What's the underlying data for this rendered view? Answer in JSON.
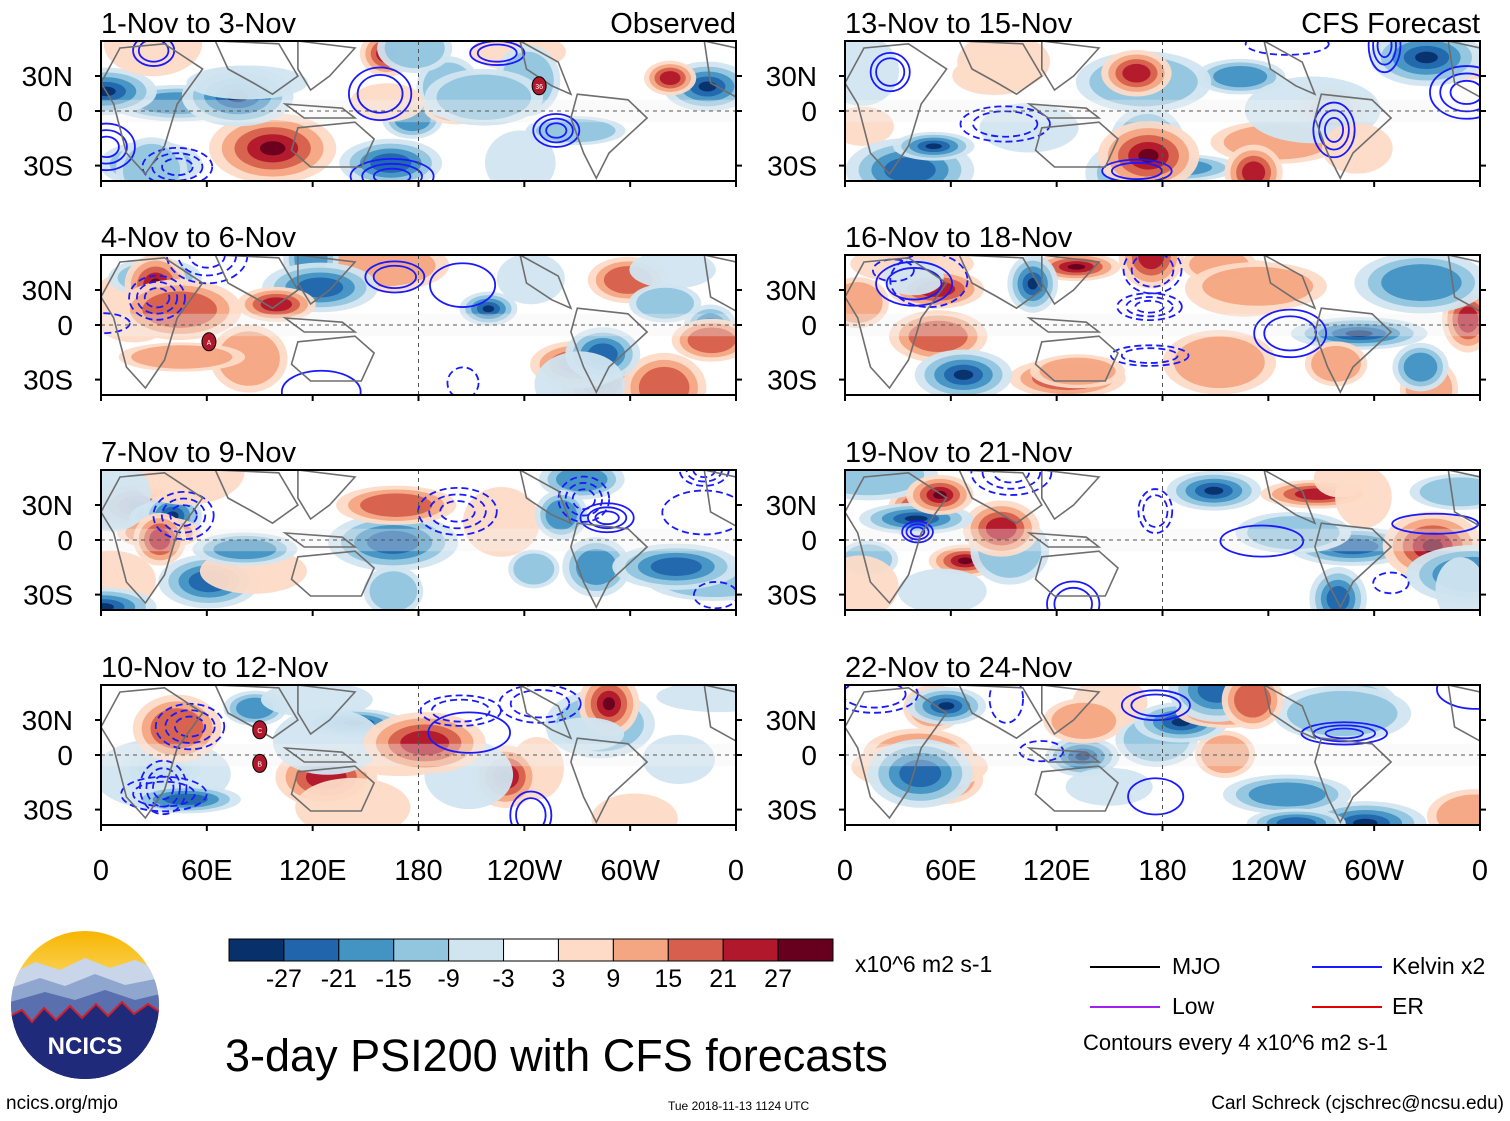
{
  "title": "3-day PSI200 with CFS forecasts",
  "footer": {
    "site": "ncics.org/mjo",
    "timestamp": "Tue 2018-11-13 1124 UTC",
    "author": "Carl Schreck (cjschrec@ncsu.edu)"
  },
  "logo_text": "NCICS",
  "colorbar": {
    "units": "x10^6 m2 s-1",
    "ticks": [
      "-27",
      "-21",
      "-15",
      "-9",
      "-3",
      "3",
      "9",
      "15",
      "21",
      "27"
    ],
    "colors": [
      "#08306b",
      "#2166ac",
      "#4393c3",
      "#92c5de",
      "#d1e5f0",
      "#ffffff",
      "#fddbc7",
      "#f4a582",
      "#d6604d",
      "#b2182b",
      "#67001f"
    ]
  },
  "legend": {
    "items": [
      {
        "label": "MJO",
        "color": "#000000"
      },
      {
        "label": "Kelvin x2",
        "color": "#1a1aff"
      },
      {
        "label": "Low",
        "color": "#a020f0"
      },
      {
        "label": "ER",
        "color": "#e00000"
      }
    ],
    "contour_note": "Contours every 4 x10^6 m2 s-1"
  },
  "chart_data": {
    "type": "heatmap",
    "variable": "PSI200 anomaly",
    "x_ticks": [
      "0",
      "60E",
      "120E",
      "180",
      "120W",
      "60W",
      "0"
    ],
    "y_ticks": [
      "30N",
      "0",
      "30S"
    ],
    "columns": [
      {
        "header": "Observed",
        "panels": [
          {
            "title": "1-Nov to 3-Nov"
          },
          {
            "title": "4-Nov to 6-Nov"
          },
          {
            "title": "7-Nov to 9-Nov"
          },
          {
            "title": "10-Nov to 12-Nov"
          }
        ]
      },
      {
        "header": "CFS Forecast",
        "panels": [
          {
            "title": "13-Nov to 15-Nov"
          },
          {
            "title": "16-Nov to 18-Nov"
          },
          {
            "title": "19-Nov to 21-Nov"
          },
          {
            "title": "22-Nov to 24-Nov"
          }
        ]
      }
    ],
    "storm_markers": [
      {
        "panel": 0,
        "label": "36"
      },
      {
        "panel": 1,
        "label": "A"
      },
      {
        "panel": 3,
        "label": "C"
      },
      {
        "panel": 3,
        "label": "B"
      }
    ]
  }
}
